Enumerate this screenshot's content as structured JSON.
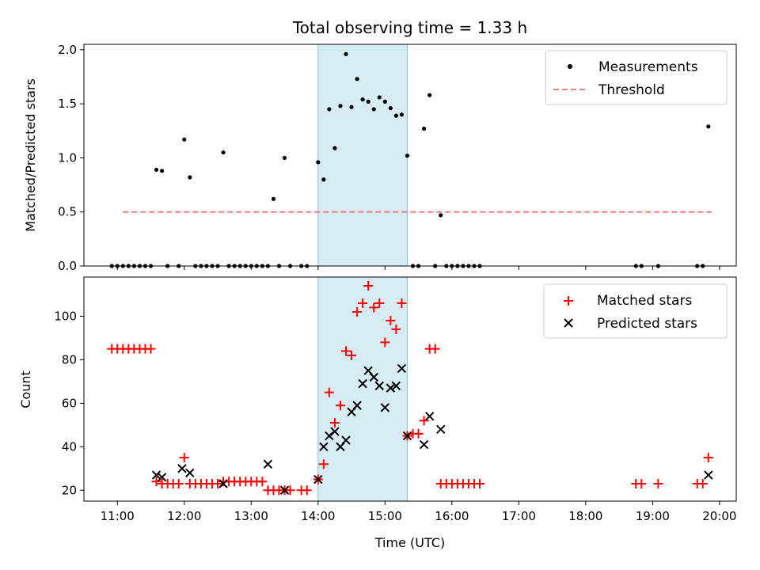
{
  "chart_data": [
    {
      "type": "scatter",
      "title": "Total observing time = 1.33 h",
      "xlabel": "",
      "ylabel": "Matched/Predicted stars",
      "xlim": [
        "10:30",
        "20:15"
      ],
      "ylim": [
        0,
        2.05
      ],
      "yticks": [
        0.0,
        0.5,
        1.0,
        1.5,
        2.0
      ],
      "ytick_labels": [
        "0.0",
        "0.5",
        "1.0",
        "1.5",
        "2.0"
      ],
      "grid": false,
      "legend_position": "top-right",
      "highlight_span": {
        "x_start": "14:00",
        "x_end": "15:20",
        "color": "#add8e6"
      },
      "series": [
        {
          "name": "Measurements",
          "marker": "dot",
          "color": "#000000",
          "x": [
            "10:55",
            "11:00",
            "11:05",
            "11:10",
            "11:15",
            "11:20",
            "11:25",
            "11:30",
            "11:35",
            "11:40",
            "11:45",
            "11:55",
            "12:00",
            "12:05",
            "12:10",
            "12:15",
            "12:20",
            "12:25",
            "12:30",
            "12:35",
            "12:40",
            "12:45",
            "12:50",
            "12:55",
            "13:00",
            "13:05",
            "13:10",
            "13:15",
            "13:20",
            "13:25",
            "13:30",
            "13:35",
            "13:45",
            "13:50",
            "14:00",
            "14:05",
            "14:10",
            "14:15",
            "14:20",
            "14:25",
            "14:30",
            "14:35",
            "14:40",
            "14:45",
            "14:50",
            "14:55",
            "15:00",
            "15:05",
            "15:10",
            "15:15",
            "15:20",
            "15:25",
            "15:30",
            "15:35",
            "15:40",
            "15:45",
            "15:50",
            "15:55",
            "16:00",
            "16:05",
            "16:10",
            "16:15",
            "16:20",
            "16:25",
            "18:45",
            "18:50",
            "19:05",
            "19:40",
            "19:45",
            "19:50"
          ],
          "y": [
            0,
            0,
            0,
            0,
            0,
            0,
            0,
            0,
            0.89,
            0.88,
            0,
            0,
            1.17,
            0.82,
            0,
            0,
            0,
            0,
            0,
            1.05,
            0,
            0,
            0,
            0,
            0,
            0,
            0,
            0,
            0.62,
            0,
            1.0,
            0,
            0,
            0,
            0.96,
            0.8,
            1.45,
            1.09,
            1.48,
            1.96,
            1.47,
            1.73,
            1.54,
            1.52,
            1.45,
            1.56,
            1.52,
            1.46,
            1.39,
            1.4,
            1.02,
            0,
            0,
            1.27,
            1.58,
            0,
            0.47,
            0,
            0,
            0,
            0,
            0,
            0,
            0,
            0,
            0,
            0,
            0,
            0,
            1.29
          ]
        },
        {
          "name": "Threshold",
          "line_style": "dashed",
          "color": "#f08080",
          "x": [
            "11:05",
            "19:55"
          ],
          "y": [
            0.5,
            0.5
          ]
        }
      ]
    },
    {
      "type": "scatter",
      "xlabel": "Time (UTC)",
      "ylabel": "Count",
      "xlim": [
        "10:30",
        "20:15"
      ],
      "ylim": [
        15,
        118
      ],
      "xticks": [
        "11:00",
        "12:00",
        "13:00",
        "14:00",
        "15:00",
        "16:00",
        "17:00",
        "18:00",
        "19:00",
        "20:00"
      ],
      "yticks": [
        20,
        40,
        60,
        80,
        100
      ],
      "grid": false,
      "legend_position": "top-right",
      "highlight_span": {
        "x_start": "14:00",
        "x_end": "15:20",
        "color": "#add8e6"
      },
      "series": [
        {
          "name": "Matched stars",
          "marker": "plus",
          "color": "#ff0000",
          "x": [
            "10:55",
            "11:00",
            "11:05",
            "11:10",
            "11:15",
            "11:20",
            "11:25",
            "11:30",
            "11:35",
            "11:40",
            "11:45",
            "11:50",
            "11:55",
            "12:00",
            "12:05",
            "12:10",
            "12:15",
            "12:20",
            "12:25",
            "12:30",
            "12:35",
            "12:40",
            "12:45",
            "12:50",
            "12:55",
            "13:00",
            "13:05",
            "13:10",
            "13:15",
            "13:20",
            "13:25",
            "13:30",
            "13:35",
            "13:45",
            "13:50",
            "14:00",
            "14:05",
            "14:10",
            "14:15",
            "14:20",
            "14:25",
            "14:30",
            "14:35",
            "14:40",
            "14:45",
            "14:50",
            "14:55",
            "15:00",
            "15:05",
            "15:10",
            "15:15",
            "15:20",
            "15:25",
            "15:30",
            "15:35",
            "15:40",
            "15:45",
            "15:50",
            "15:55",
            "16:00",
            "16:05",
            "16:10",
            "16:15",
            "16:20",
            "16:25",
            "18:45",
            "18:50",
            "19:05",
            "19:40",
            "19:45",
            "19:50"
          ],
          "y": [
            85,
            85,
            85,
            85,
            85,
            85,
            85,
            85,
            24,
            23,
            23,
            23,
            23,
            35,
            23,
            23,
            23,
            23,
            23,
            23,
            24,
            24,
            24,
            24,
            24,
            24,
            24,
            24,
            20,
            20,
            20,
            20,
            20,
            20,
            20,
            25,
            32,
            65,
            51,
            59,
            84,
            82,
            102,
            106,
            114,
            104,
            106,
            88,
            98,
            94,
            106,
            45,
            46,
            46,
            52,
            85,
            85,
            23,
            23,
            23,
            23,
            23,
            23,
            23,
            23,
            23,
            23,
            23,
            23,
            23,
            35
          ]
        },
        {
          "name": "Predicted stars",
          "marker": "x",
          "color": "#000000",
          "x": [
            "11:35",
            "11:40",
            "11:58",
            "12:05",
            "12:35",
            "13:15",
            "13:30",
            "14:00",
            "14:05",
            "14:10",
            "14:15",
            "14:20",
            "14:25",
            "14:30",
            "14:35",
            "14:40",
            "14:45",
            "14:50",
            "14:55",
            "15:00",
            "15:05",
            "15:10",
            "15:15",
            "15:20",
            "15:35",
            "15:40",
            "15:50",
            "19:50"
          ],
          "y": [
            27,
            26,
            30,
            28,
            23,
            32,
            20,
            25,
            40,
            45,
            47,
            40,
            43,
            56,
            59,
            69,
            75,
            72,
            68,
            58,
            67,
            68,
            76,
            45,
            41,
            54,
            48,
            27
          ]
        }
      ]
    }
  ]
}
